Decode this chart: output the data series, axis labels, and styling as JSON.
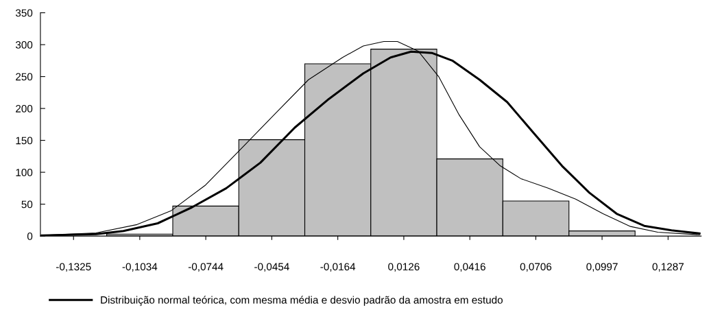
{
  "chart_data": {
    "type": "histogram",
    "bins": [
      -0.11795,
      -0.0889,
      -0.0599,
      -0.0309,
      -0.0019,
      0.0271,
      0.0561,
      0.08515,
      0.1142
    ],
    "values": [
      3,
      47,
      151,
      270,
      293,
      121,
      55,
      8
    ],
    "color": "#c0c0c0",
    "series": [
      {
        "type": "line",
        "name": "Distribuição normal teórica, com mesma média e desvio padrão da amostra em estudo",
        "color": "#000000",
        "x": [
          -0.1465,
          -0.1226,
          -0.1106,
          -0.0955,
          -0.0805,
          -0.0654,
          -0.0504,
          -0.0353,
          -0.0203,
          -0.0052,
          0.0068,
          0.0158,
          0.0249,
          0.0339,
          0.0459,
          0.058,
          0.07,
          0.0821,
          0.0941,
          0.1061,
          0.1182,
          0.1302,
          0.1425
        ],
        "values": [
          1,
          3,
          8,
          20,
          45,
          75,
          115,
          170,
          215,
          255,
          280,
          289,
          287,
          275,
          245,
          210,
          160,
          110,
          68,
          35,
          16,
          9,
          4
        ]
      },
      {
        "type": "line",
        "color": "#000000",
        "x": [
          -0.1465,
          -0.1226,
          -0.1046,
          -0.0895,
          -0.0745,
          -0.0594,
          -0.0444,
          -0.0293,
          -0.0143,
          -0.0052,
          0.0038,
          0.0098,
          0.0189,
          0.0279,
          0.0369,
          0.0459,
          0.055,
          0.064,
          0.076,
          0.0881,
          0.1001,
          0.1122,
          0.1242,
          0.1425
        ],
        "values": [
          1,
          5,
          18,
          40,
          80,
          135,
          190,
          245,
          280,
          298,
          305,
          305,
          290,
          250,
          190,
          140,
          110,
          90,
          75,
          58,
          35,
          15,
          6,
          2
        ]
      }
    ],
    "xlim": [
      -0.14705,
      0.14325
    ],
    "xticks": [
      {
        "value": -0.1325,
        "label": "-0,1325"
      },
      {
        "value": -0.1034,
        "label": "-0,1034"
      },
      {
        "value": -0.0744,
        "label": "-0,0744"
      },
      {
        "value": -0.0454,
        "label": "-0,0454"
      },
      {
        "value": -0.0164,
        "label": "-0,0164"
      },
      {
        "value": 0.0126,
        "label": "0,0126"
      },
      {
        "value": 0.0416,
        "label": "0,0416"
      },
      {
        "value": 0.0706,
        "label": "0,0706"
      },
      {
        "value": 0.0997,
        "label": "0,0997"
      },
      {
        "value": 0.1287,
        "label": "0,1287"
      }
    ],
    "ylim": [
      0,
      350
    ],
    "yticks": [
      0,
      50,
      100,
      150,
      200,
      250,
      300,
      350
    ],
    "grid": false,
    "legend": "bottom"
  }
}
